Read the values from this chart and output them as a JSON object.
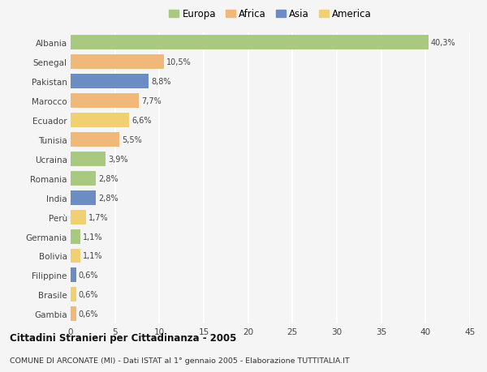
{
  "countries": [
    "Albania",
    "Senegal",
    "Pakistan",
    "Marocco",
    "Ecuador",
    "Tunisia",
    "Ucraina",
    "Romania",
    "India",
    "Perù",
    "Germania",
    "Bolivia",
    "Filippine",
    "Brasile",
    "Gambia"
  ],
  "values": [
    40.3,
    10.5,
    8.8,
    7.7,
    6.6,
    5.5,
    3.9,
    2.8,
    2.8,
    1.7,
    1.1,
    1.1,
    0.6,
    0.6,
    0.6
  ],
  "labels": [
    "40,3%",
    "10,5%",
    "8,8%",
    "7,7%",
    "6,6%",
    "5,5%",
    "3,9%",
    "2,8%",
    "2,8%",
    "1,7%",
    "1,1%",
    "1,1%",
    "0,6%",
    "0,6%",
    "0,6%"
  ],
  "colors": [
    "#a8c97f",
    "#f0b97a",
    "#6b8dc4",
    "#f0b97a",
    "#f0d070",
    "#f0b97a",
    "#a8c97f",
    "#a8c97f",
    "#6b8dc4",
    "#f0d070",
    "#a8c97f",
    "#f0d070",
    "#6b8dc4",
    "#f0d070",
    "#f0b97a"
  ],
  "legend_labels": [
    "Europa",
    "Africa",
    "Asia",
    "America"
  ],
  "legend_colors": [
    "#a8c97f",
    "#f0b97a",
    "#6b8dc4",
    "#f0d070"
  ],
  "title": "Cittadini Stranieri per Cittadinanza - 2005",
  "subtitle": "COMUNE DI ARCONATE (MI) - Dati ISTAT al 1° gennaio 2005 - Elaborazione TUTTITALIA.IT",
  "xlim": [
    0,
    45
  ],
  "xticks": [
    0,
    5,
    10,
    15,
    20,
    25,
    30,
    35,
    40,
    45
  ],
  "bg_color": "#f5f5f5",
  "grid_color": "#ffffff",
  "bar_height": 0.75
}
